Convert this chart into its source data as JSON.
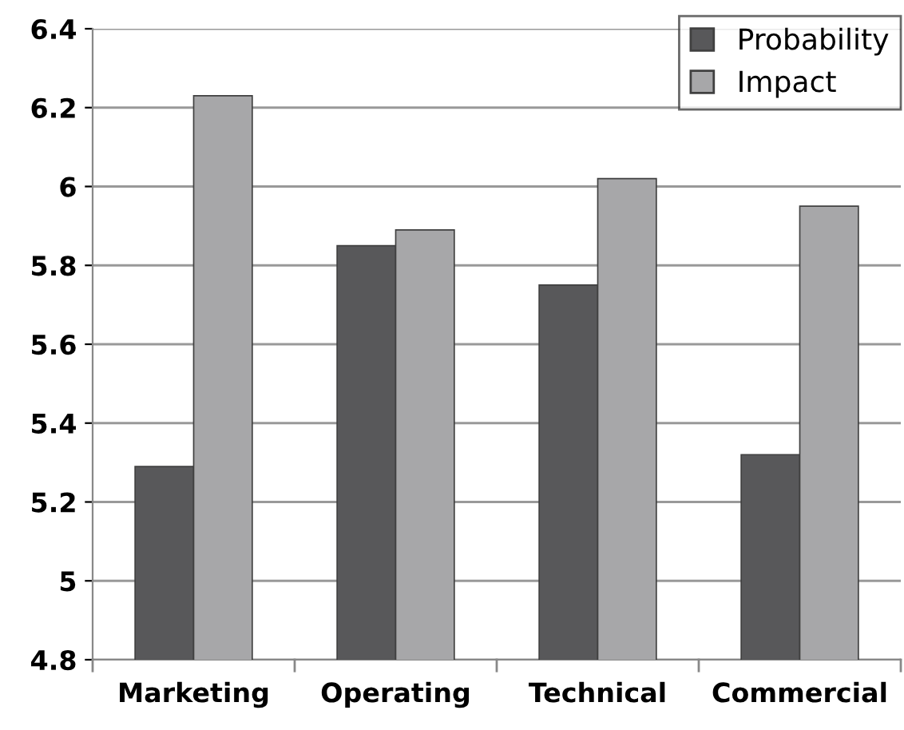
{
  "chart_data": {
    "type": "bar",
    "categories": [
      "Marketing",
      "Operating",
      "Technical",
      "Commercial"
    ],
    "series": [
      {
        "name": "Probability",
        "color": "#58585a",
        "values": [
          5.29,
          5.85,
          5.75,
          5.32
        ]
      },
      {
        "name": "Impact",
        "color": "#a7a7a9",
        "values": [
          6.23,
          5.89,
          6.02,
          5.95
        ]
      }
    ],
    "ylim": [
      4.8,
      6.4
    ],
    "yticks": [
      4.8,
      5,
      5.2,
      5.4,
      5.6,
      5.8,
      6,
      6.2,
      6.4
    ],
    "grid": "y",
    "legend": "top right"
  }
}
